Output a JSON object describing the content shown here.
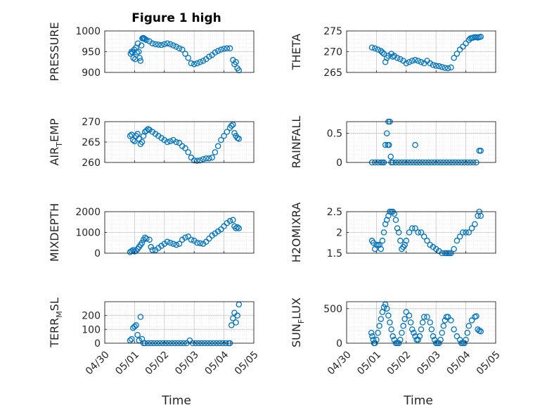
{
  "figure": {
    "title": "Figure 1 high",
    "xlabel": "Time",
    "x_tick_labels": [
      "04/30",
      "05/01",
      "05/02",
      "05/03",
      "05/04",
      "05/05"
    ],
    "marker_color": "#0072BD",
    "grid_color": "#d9d9d9"
  },
  "chart_data": [
    {
      "type": "scatter",
      "ylabel": "PRESSURE",
      "ylabel_sub": "",
      "ylim": [
        900,
        1000
      ],
      "yticks": [
        900,
        950,
        1000
      ],
      "ytick_labels": [
        "900",
        "950",
        "1000"
      ],
      "x": [
        0.87,
        0.9,
        0.93,
        0.96,
        0.99,
        1.02,
        1.05,
        1.08,
        1.11,
        1.14,
        1.17,
        1.2,
        1.23,
        1.26,
        1.29,
        1.32,
        1.35,
        1.4,
        1.5,
        1.6,
        1.7,
        1.8,
        1.9,
        2.0,
        2.1,
        2.2,
        2.3,
        2.4,
        2.5,
        2.6,
        2.7,
        2.8,
        2.9,
        3.0,
        3.1,
        3.2,
        3.3,
        3.4,
        3.5,
        3.6,
        3.7,
        3.8,
        3.9,
        4.0,
        4.1,
        4.2,
        4.3,
        4.35,
        4.4,
        4.45,
        4.5
      ],
      "y": [
        945,
        950,
        948,
        935,
        955,
        932,
        960,
        948,
        970,
        950,
        935,
        928,
        965,
        982,
        983,
        982,
        980,
        978,
        975,
        970,
        968,
        967,
        966,
        968,
        970,
        968,
        965,
        962,
        958,
        955,
        945,
        935,
        922,
        920,
        922,
        925,
        928,
        932,
        938,
        942,
        948,
        952,
        955,
        957,
        958,
        958,
        930,
        920,
        925,
        910,
        905
      ]
    },
    {
      "type": "scatter",
      "ylabel": "THETA",
      "ylabel_sub": "",
      "ylim": [
        265,
        275
      ],
      "yticks": [
        265,
        270,
        275
      ],
      "ytick_labels": [
        "265",
        "270",
        "275"
      ],
      "x": [
        0.85,
        0.95,
        1.05,
        1.15,
        1.2,
        1.25,
        1.3,
        1.35,
        1.4,
        1.5,
        1.55,
        1.6,
        1.7,
        1.8,
        1.9,
        2.0,
        2.1,
        2.2,
        2.3,
        2.4,
        2.5,
        2.6,
        2.7,
        2.8,
        2.9,
        3.0,
        3.1,
        3.2,
        3.3,
        3.4,
        3.5,
        3.6,
        3.7,
        3.8,
        3.9,
        4.0,
        4.1,
        4.15,
        4.2,
        4.25,
        4.3,
        4.35,
        4.4,
        4.45,
        4.5
      ],
      "y": [
        271,
        270.8,
        270.5,
        270.2,
        269.8,
        269.5,
        267.5,
        268.5,
        269,
        269.5,
        268.8,
        269,
        268.5,
        268.2,
        267.8,
        267.2,
        267.5,
        267.8,
        268,
        267.8,
        267.5,
        267.2,
        267.8,
        267.2,
        266.8,
        266.6,
        266.5,
        266.3,
        266.1,
        266,
        266.2,
        268.5,
        269.5,
        270.5,
        271.2,
        272,
        272.8,
        273.2,
        273.3,
        273.4,
        273.5,
        273.5,
        273.4,
        273.5,
        273.6
      ]
    },
    {
      "type": "scatter",
      "ylabel": "AIR",
      "ylabel_sub": "T",
      "ylabel_tail": "EMP",
      "ylim": [
        260,
        270
      ],
      "yticks": [
        260,
        265,
        270
      ],
      "ytick_labels": [
        "260",
        "265",
        "270"
      ],
      "x": [
        0.85,
        0.9,
        0.95,
        1.0,
        1.05,
        1.1,
        1.15,
        1.2,
        1.25,
        1.3,
        1.35,
        1.4,
        1.45,
        1.5,
        1.6,
        1.7,
        1.8,
        1.9,
        2.0,
        2.1,
        2.2,
        2.3,
        2.4,
        2.5,
        2.6,
        2.7,
        2.8,
        2.9,
        3.0,
        3.1,
        3.2,
        3.3,
        3.4,
        3.5,
        3.6,
        3.7,
        3.8,
        3.9,
        4.0,
        4.1,
        4.2,
        4.25,
        4.3,
        4.35,
        4.4,
        4.45,
        4.5
      ],
      "y": [
        266.5,
        266.8,
        265.5,
        265.2,
        266.5,
        267,
        265.8,
        264.5,
        265,
        266.5,
        267.5,
        267.8,
        268.2,
        268,
        267.5,
        267,
        266.5,
        266,
        265.5,
        265,
        265.2,
        265.5,
        265,
        264.8,
        264,
        263.5,
        262.5,
        261.2,
        260.5,
        260.4,
        260.5,
        260.8,
        261,
        261,
        261.2,
        262.5,
        264,
        265.5,
        266.5,
        267.5,
        268.5,
        269,
        269.3,
        267.2,
        266.5,
        266,
        265.8
      ]
    },
    {
      "type": "scatter",
      "ylabel": "RAINFALL",
      "ylabel_sub": "",
      "ylim": [
        0,
        0.7
      ],
      "yticks": [
        0,
        0.5
      ],
      "ytick_labels": [
        "0",
        "0.5"
      ],
      "x": [
        0.85,
        0.95,
        1.05,
        1.15,
        1.2,
        1.25,
        1.3,
        1.35,
        1.38,
        1.4,
        1.42,
        1.45,
        1.48,
        1.5,
        1.55,
        1.65,
        1.75,
        1.85,
        1.95,
        2.05,
        2.15,
        2.25,
        2.3,
        2.35,
        2.45,
        2.55,
        2.65,
        2.75,
        2.85,
        2.95,
        3.05,
        3.15,
        3.25,
        3.35,
        3.45,
        3.55,
        3.65,
        3.75,
        3.85,
        3.95,
        4.05,
        4.15,
        4.25,
        4.35,
        4.45,
        4.5
      ],
      "y": [
        0,
        0,
        0,
        0,
        0,
        0,
        0.3,
        0.5,
        0.3,
        0.7,
        0.3,
        0.7,
        0.1,
        0,
        0,
        0,
        0,
        0,
        0,
        0,
        0,
        0,
        0.3,
        0,
        0,
        0,
        0,
        0,
        0,
        0,
        0,
        0,
        0,
        0,
        0,
        0,
        0,
        0,
        0,
        0,
        0,
        0,
        0,
        0,
        0.2,
        0.2
      ]
    },
    {
      "type": "scatter",
      "ylabel": "MIXDEPTH",
      "ylabel_sub": "",
      "ylim": [
        0,
        2000
      ],
      "yticks": [
        0,
        1000,
        2000
      ],
      "ytick_labels": [
        "0",
        "1000",
        "2000"
      ],
      "x": [
        0.85,
        0.9,
        0.95,
        1.0,
        1.05,
        1.1,
        1.15,
        1.2,
        1.25,
        1.3,
        1.35,
        1.4,
        1.5,
        1.55,
        1.6,
        1.7,
        1.8,
        1.9,
        2.0,
        2.1,
        2.2,
        2.3,
        2.4,
        2.5,
        2.6,
        2.7,
        2.8,
        2.9,
        3.0,
        3.1,
        3.2,
        3.3,
        3.4,
        3.5,
        3.6,
        3.7,
        3.8,
        3.9,
        4.0,
        4.1,
        4.2,
        4.3,
        4.35,
        4.4,
        4.45,
        4.5
      ],
      "y": [
        50,
        100,
        150,
        80,
        120,
        200,
        300,
        400,
        500,
        650,
        750,
        700,
        650,
        300,
        150,
        150,
        250,
        350,
        450,
        550,
        500,
        450,
        400,
        450,
        650,
        750,
        800,
        650,
        600,
        500,
        480,
        450,
        550,
        700,
        850,
        950,
        1050,
        1150,
        1300,
        1450,
        1550,
        1600,
        1300,
        1200,
        1250,
        1200
      ]
    },
    {
      "type": "scatter",
      "ylabel": "H2OMIXRA",
      "ylabel_sub": "",
      "ylim": [
        1.5,
        2.5
      ],
      "yticks": [
        1.5,
        2,
        2.5
      ],
      "ytick_labels": [
        "1.5",
        "2",
        "2.5"
      ],
      "x": [
        0.85,
        0.9,
        0.95,
        1.0,
        1.05,
        1.1,
        1.15,
        1.2,
        1.25,
        1.3,
        1.35,
        1.4,
        1.45,
        1.5,
        1.55,
        1.6,
        1.65,
        1.7,
        1.75,
        1.8,
        1.85,
        1.9,
        1.95,
        2.0,
        2.1,
        2.2,
        2.3,
        2.4,
        2.5,
        2.6,
        2.7,
        2.8,
        2.9,
        3.0,
        3.1,
        3.2,
        3.3,
        3.35,
        3.4,
        3.45,
        3.5,
        3.6,
        3.7,
        3.8,
        3.9,
        4.0,
        4.1,
        4.2,
        4.3,
        4.4,
        4.45,
        4.5
      ],
      "y": [
        1.8,
        1.75,
        1.6,
        1.7,
        1.7,
        1.7,
        1.6,
        1.8,
        2.0,
        2.2,
        2.3,
        2.4,
        2.5,
        2.5,
        2.5,
        2.45,
        2.3,
        2.1,
        2.0,
        1.8,
        1.6,
        1.65,
        1.7,
        1.8,
        2.0,
        2.1,
        2.1,
        2.0,
        2.0,
        1.9,
        1.8,
        1.7,
        1.65,
        1.6,
        1.55,
        1.5,
        1.5,
        1.5,
        1.5,
        1.5,
        1.5,
        1.6,
        1.8,
        1.9,
        2.0,
        2.0,
        2.0,
        2.1,
        2.2,
        2.4,
        2.5,
        2.4
      ]
    },
    {
      "type": "scatter",
      "ylabel": "TERR",
      "ylabel_sub": "M",
      "ylabel_tail": "SL",
      "ylim": [
        0,
        300
      ],
      "yticks": [
        0,
        100,
        200
      ],
      "ytick_labels": [
        "0",
        "100",
        "200"
      ],
      "x": [
        0.85,
        0.9,
        0.95,
        1.0,
        1.05,
        1.1,
        1.15,
        1.2,
        1.25,
        1.3,
        1.35,
        1.45,
        1.55,
        1.65,
        1.75,
        1.85,
        1.95,
        2.05,
        2.15,
        2.25,
        2.35,
        2.45,
        2.55,
        2.65,
        2.75,
        2.85,
        2.95,
        3.05,
        3.15,
        3.25,
        3.35,
        3.45,
        3.55,
        3.65,
        3.75,
        3.85,
        3.95,
        4.05,
        4.15,
        4.2,
        4.25,
        4.3,
        4.35,
        4.4,
        4.45,
        4.5
      ],
      "y": [
        20,
        30,
        110,
        120,
        130,
        60,
        20,
        190,
        30,
        0,
        0,
        0,
        0,
        0,
        0,
        0,
        0,
        0,
        0,
        0,
        0,
        0,
        0,
        0,
        0,
        20,
        0,
        0,
        0,
        0,
        0,
        0,
        0,
        0,
        0,
        0,
        0,
        0,
        0,
        0,
        130,
        180,
        220,
        150,
        200,
        280
      ]
    },
    {
      "type": "scatter",
      "ylabel": "SUN",
      "ylabel_sub": "F",
      "ylabel_tail": "LUX",
      "ylim": [
        0,
        600
      ],
      "yticks": [
        0,
        500
      ],
      "ytick_labels": [
        "0",
        "500"
      ],
      "x": [
        0.83,
        0.86,
        0.89,
        0.92,
        0.95,
        1.0,
        1.05,
        1.1,
        1.15,
        1.2,
        1.25,
        1.3,
        1.35,
        1.4,
        1.45,
        1.5,
        1.55,
        1.6,
        1.65,
        1.7,
        1.75,
        1.8,
        1.85,
        1.9,
        1.95,
        2.0,
        2.1,
        2.15,
        2.2,
        2.25,
        2.3,
        2.35,
        2.4,
        2.45,
        2.5,
        2.55,
        2.6,
        2.7,
        2.8,
        2.85,
        2.9,
        2.95,
        3.0,
        3.05,
        3.1,
        3.15,
        3.2,
        3.25,
        3.3,
        3.35,
        3.4,
        3.5,
        3.6,
        3.7,
        3.8,
        3.85,
        3.9,
        3.95,
        4.0,
        4.05,
        4.1,
        4.2,
        4.3,
        4.35,
        4.4,
        4.45,
        4.5
      ],
      "y": [
        150,
        100,
        50,
        0,
        0,
        50,
        150,
        250,
        350,
        450,
        520,
        560,
        500,
        400,
        300,
        200,
        100,
        50,
        0,
        0,
        0,
        50,
        150,
        250,
        350,
        450,
        400,
        300,
        200,
        150,
        100,
        50,
        50,
        100,
        200,
        300,
        380,
        380,
        300,
        200,
        100,
        50,
        0,
        0,
        0,
        50,
        150,
        250,
        330,
        380,
        380,
        330,
        200,
        100,
        50,
        0,
        0,
        0,
        50,
        150,
        250,
        330,
        380,
        390,
        200,
        180,
        170
      ]
    }
  ]
}
